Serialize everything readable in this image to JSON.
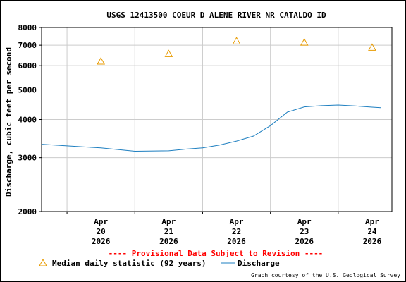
{
  "chart_data": {
    "type": "line",
    "title": "USGS 12413500 COEUR D ALENE RIVER NR CATALDO ID",
    "ylabel": "Discharge, cubic feet per second",
    "xlabel": "",
    "y_scale": "log",
    "ylim": [
      2000,
      8000
    ],
    "y_ticks": [
      "2000",
      "3000",
      "4000",
      "5000",
      "6000",
      "7000",
      "8000"
    ],
    "y_tick_values": [
      2000,
      3000,
      4000,
      5000,
      6000,
      7000,
      8000
    ],
    "x_range_days": [
      "2026-04-19T15:00",
      "2026-04-24T19:00"
    ],
    "x_ticks": [
      {
        "date": "2026-04-20T12:00",
        "line1": "Apr",
        "line2": "20",
        "line3": "2026"
      },
      {
        "date": "2026-04-21T12:00",
        "line1": "Apr",
        "line2": "21",
        "line3": "2026"
      },
      {
        "date": "2026-04-22T12:00",
        "line1": "Apr",
        "line2": "22",
        "line3": "2026"
      },
      {
        "date": "2026-04-23T12:00",
        "line1": "Apr",
        "line2": "23",
        "line3": "2026"
      },
      {
        "date": "2026-04-24T12:00",
        "line1": "Apr",
        "line2": "24",
        "line3": "2026"
      }
    ],
    "grid": true,
    "series": [
      {
        "name": "Discharge",
        "color": "#1e7fc0",
        "x": [
          "2026-04-19T15:00",
          "2026-04-20T00:00",
          "2026-04-20T12:00",
          "2026-04-21T00:00",
          "2026-04-21T12:00",
          "2026-04-21T18:00",
          "2026-04-22T00:00",
          "2026-04-22T06:00",
          "2026-04-22T12:00",
          "2026-04-22T18:00",
          "2026-04-23T00:00",
          "2026-04-23T06:00",
          "2026-04-23T12:00",
          "2026-04-23T18:00",
          "2026-04-24T00:00",
          "2026-04-24T06:00",
          "2026-04-24T12:00",
          "2026-04-24T15:00"
        ],
        "y": [
          3320,
          3280,
          3230,
          3150,
          3160,
          3200,
          3230,
          3300,
          3400,
          3530,
          3820,
          4230,
          4400,
          4440,
          4460,
          4430,
          4390,
          4370
        ]
      },
      {
        "name": "Median daily statistic (92 years)",
        "color": "#e89b00",
        "marker": "triangle",
        "x": [
          "2026-04-20T12:00",
          "2026-04-21T12:00",
          "2026-04-22T12:00",
          "2026-04-23T12:00",
          "2026-04-24T12:00"
        ],
        "y": [
          6200,
          6560,
          7220,
          7150,
          6880
        ]
      }
    ]
  },
  "provisional_note": "---- Provisional Data Subject to Revision ----",
  "legend": {
    "median_label": "Median daily statistic (92 years)",
    "discharge_label": "Discharge"
  },
  "courtesy": "Graph courtesy of the U.S. Geological Survey",
  "colors": {
    "discharge": "#1e7fc0",
    "median": "#e89b00",
    "provisional": "#ff0000",
    "grid": "#cccccc"
  }
}
